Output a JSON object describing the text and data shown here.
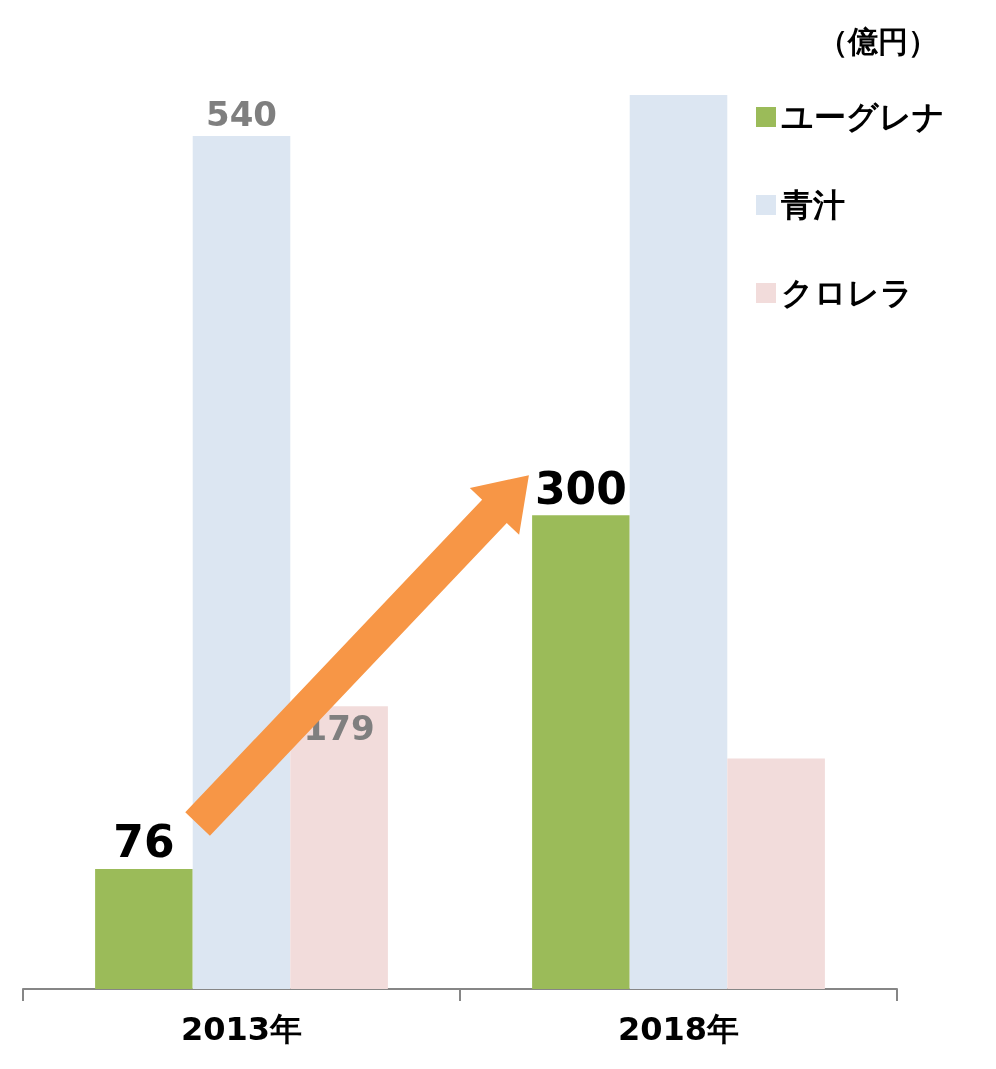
{
  "chart_data": {
    "type": "bar",
    "ylabel": "（億円）",
    "categories": [
      "2013年",
      "2018年"
    ],
    "series": [
      {
        "name": "ユーグレナ",
        "color": "#9bbb59",
        "values": [
          76,
          300
        ],
        "value_labels": [
          "76",
          "300"
        ]
      },
      {
        "name": "青汁",
        "color": "#dce6f2",
        "values": [
          540,
          566
        ],
        "value_labels": [
          "540",
          null
        ]
      },
      {
        "name": "クロレラ",
        "color": "#f2dcdb",
        "values": [
          179,
          146
        ],
        "value_labels": [
          "179",
          null
        ]
      }
    ],
    "tick_labels": "x",
    "grid": false,
    "legend": "top right"
  }
}
